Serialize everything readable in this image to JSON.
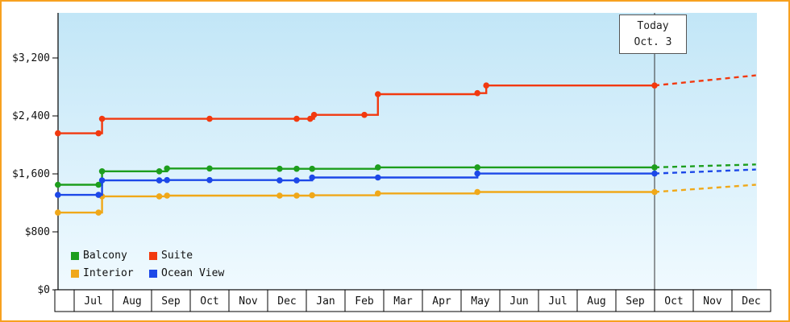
{
  "window": {
    "frame_border_color": "#f7a11f",
    "background": "#ffffff"
  },
  "chart_data": {
    "type": "step-line",
    "title": "",
    "description": "Cruise cabin price history by category with projected (dashed) prices after today",
    "colors": {
      "plot_top": "#c2e6f7",
      "plot_bottom": "#f0faff",
      "axis": "#000000",
      "today_line": "#333333"
    },
    "y_axis": {
      "ticks": [
        {
          "label": "$0",
          "value": 0
        },
        {
          "label": "$800",
          "value": 800
        },
        {
          "label": "$1,600",
          "value": 1600
        },
        {
          "label": "$2,400",
          "value": 2400
        },
        {
          "label": "$3,200",
          "value": 3200
        }
      ]
    },
    "x_axis": {
      "months": [
        "Jul",
        "Aug",
        "Sep",
        "Oct",
        "Nov",
        "Dec",
        "Jan",
        "Feb",
        "Mar",
        "Apr",
        "May",
        "Jun",
        "Jul",
        "Aug",
        "Sep",
        "Oct",
        "Nov",
        "Dec"
      ]
    },
    "today": {
      "label": "Today",
      "date": "Oct. 3",
      "position_month": 15
    },
    "series": [
      {
        "id": "balcony",
        "name": "Balcony",
        "color": "#1d9e1d",
        "points": [
          [
            -0.42,
            1450
          ],
          [
            0.63,
            1450
          ],
          [
            0.72,
            1635
          ],
          [
            2.2,
            1635
          ],
          [
            2.4,
            1675
          ],
          [
            3.5,
            1675
          ],
          [
            5.31,
            1670
          ],
          [
            5.75,
            1670
          ],
          [
            6.15,
            1670
          ],
          [
            7.85,
            1690
          ],
          [
            10.42,
            1690
          ],
          [
            15,
            1690
          ]
        ],
        "future_end": [
          17.62,
          1730
        ]
      },
      {
        "id": "suite",
        "name": "Suite",
        "color": "#f2390f",
        "points": [
          [
            -0.42,
            2160
          ],
          [
            0.63,
            2160
          ],
          [
            0.72,
            2360
          ],
          [
            3.5,
            2360
          ],
          [
            5.75,
            2360
          ],
          [
            6.1,
            2360
          ],
          [
            6.2,
            2415
          ],
          [
            7.5,
            2415
          ],
          [
            7.85,
            2700
          ],
          [
            10.42,
            2715
          ],
          [
            10.65,
            2820
          ],
          [
            15,
            2820
          ]
        ],
        "future_end": [
          17.62,
          2960
        ]
      },
      {
        "id": "interior",
        "name": "Interior",
        "color": "#f0a819",
        "points": [
          [
            -0.42,
            1065
          ],
          [
            0.63,
            1065
          ],
          [
            0.72,
            1290
          ],
          [
            2.2,
            1290
          ],
          [
            2.4,
            1300
          ],
          [
            5.31,
            1300
          ],
          [
            5.75,
            1300
          ],
          [
            6.15,
            1305
          ],
          [
            7.85,
            1330
          ],
          [
            10.42,
            1350
          ],
          [
            15,
            1350
          ]
        ],
        "future_end": [
          17.62,
          1450
        ]
      },
      {
        "id": "ocean-view",
        "name": "Ocean View",
        "color": "#1c48e8",
        "points": [
          [
            -0.42,
            1310
          ],
          [
            0.63,
            1310
          ],
          [
            0.72,
            1510
          ],
          [
            2.2,
            1510
          ],
          [
            2.4,
            1515
          ],
          [
            3.5,
            1515
          ],
          [
            5.31,
            1510
          ],
          [
            5.75,
            1510
          ],
          [
            6.15,
            1550
          ],
          [
            7.85,
            1550
          ],
          [
            10.42,
            1605
          ],
          [
            15,
            1605
          ]
        ],
        "future_end": [
          17.62,
          1660
        ]
      }
    ]
  }
}
